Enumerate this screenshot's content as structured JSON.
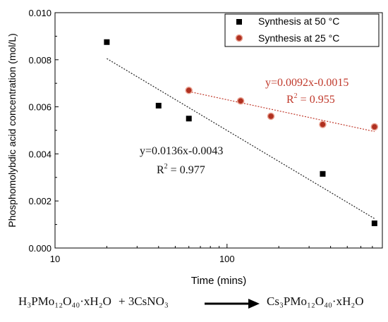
{
  "chart_data": {
    "type": "scatter",
    "xlabel": "Time (mins)",
    "ylabel": "Phosphomolybdic acid concentration (mol/L)",
    "xscale": "log",
    "xlim": [
      10,
      800
    ],
    "ylim": [
      0,
      0.01
    ],
    "x_ticks": [
      "10",
      "100"
    ],
    "y_ticks": [
      "0.000",
      "0.002",
      "0.004",
      "0.006",
      "0.008",
      "0.010"
    ],
    "grid": false,
    "legend_position": "top-right",
    "series": [
      {
        "name": "Synthesis at 50 °C",
        "marker": "square",
        "color": "#000000",
        "x": [
          20,
          40,
          60,
          360,
          720
        ],
        "y": [
          0.00875,
          0.00605,
          0.0055,
          0.00315,
          0.00105
        ],
        "fit_label": "y=0.0136x-0.0043",
        "r2_label": "R",
        "r2_exp": "2",
        "r2_value": " = 0.977",
        "fit_y": [
          0.00805,
          0.00125
        ],
        "fit_color": "#222222"
      },
      {
        "name": "Synthesis at 25 °C",
        "marker": "circle",
        "color": "#b03020",
        "x": [
          60,
          120,
          180,
          360,
          720
        ],
        "y": [
          0.0067,
          0.00625,
          0.0056,
          0.00525,
          0.00515
        ],
        "fit_label": "y=0.0092x-0.0015",
        "r2_label": "R",
        "r2_exp": "2",
        "r2_value": " = 0.955",
        "fit_y": [
          0.00665,
          0.00495
        ],
        "fit_color": "#c0392b"
      }
    ]
  },
  "equation": {
    "reactant1": "H₃PMo₁₂O₄₀·xH₂O",
    "plus": "+ 3CsNO₃",
    "product": "Cs₃PMo₁₂O₄₀·xH₂O"
  }
}
